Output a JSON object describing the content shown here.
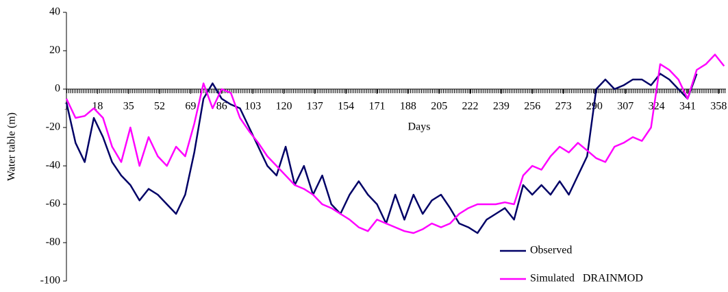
{
  "chart_data": {
    "type": "line",
    "x_label": "Days",
    "y_label": "Water table (m)",
    "x": [
      1,
      6,
      11,
      16,
      21,
      26,
      31,
      36,
      41,
      46,
      51,
      56,
      61,
      66,
      71,
      76,
      81,
      86,
      91,
      96,
      101,
      106,
      111,
      116,
      121,
      126,
      131,
      136,
      141,
      146,
      151,
      156,
      161,
      166,
      171,
      176,
      181,
      186,
      191,
      196,
      201,
      206,
      211,
      216,
      221,
      226,
      231,
      236,
      241,
      246,
      251,
      256,
      261,
      266,
      271,
      276,
      281,
      286,
      291,
      296,
      301,
      306,
      311,
      316,
      321,
      326,
      331,
      336,
      341,
      346,
      351,
      356,
      361
    ],
    "series": [
      {
        "name": "Observed",
        "color": "#000066",
        "values": [
          -7,
          -28,
          -38,
          -15,
          -25,
          -38,
          -45,
          -50,
          -58,
          -52,
          -55,
          -60,
          -65,
          -55,
          -33,
          -5,
          3,
          -5,
          -8,
          -10,
          -20,
          -30,
          -40,
          -45,
          -30,
          -50,
          -40,
          -55,
          -45,
          -60,
          -65,
          -55,
          -48,
          -55,
          -60,
          -70,
          -55,
          -68,
          -55,
          -65,
          -58,
          -55,
          -62,
          -70,
          -72,
          -75,
          -68,
          -65,
          -62,
          -68,
          -50,
          -55,
          -50,
          -55,
          -48,
          -55,
          -45,
          -35,
          0,
          5,
          0,
          2,
          5,
          5,
          2,
          8,
          5,
          0,
          -5,
          8,
          null,
          null,
          null
        ]
      },
      {
        "name": "Simulated   DRAINMOD",
        "color": "#ff00ff",
        "values": [
          -5,
          -15,
          -14,
          -10,
          -15,
          -30,
          -38,
          -20,
          -40,
          -25,
          -35,
          -40,
          -30,
          -35,
          -18,
          3,
          -10,
          0,
          -2,
          -15,
          -22,
          -28,
          -35,
          -40,
          -45,
          -50,
          -52,
          -55,
          -60,
          -62,
          -65,
          -68,
          -72,
          -74,
          -68,
          -70,
          -72,
          -74,
          -75,
          -73,
          -70,
          -72,
          -70,
          -65,
          -62,
          -60,
          -60,
          -60,
          -59,
          -60,
          -45,
          -40,
          -42,
          -35,
          -30,
          -33,
          -28,
          -32,
          -36,
          -38,
          -30,
          -28,
          -25,
          -27,
          -20,
          13,
          10,
          5,
          -5,
          10,
          13,
          18,
          12
        ]
      }
    ],
    "xlim": [
      1,
      362
    ],
    "xticks": [
      1,
      18,
      35,
      52,
      69,
      86,
      103,
      120,
      137,
      154,
      171,
      188,
      205,
      222,
      239,
      256,
      273,
      290,
      307,
      324,
      341,
      358
    ],
    "ylim": [
      -100,
      40
    ],
    "yticks": [
      40,
      20,
      0,
      -20,
      -40,
      -60,
      -80,
      -100
    ],
    "legend": "lower right"
  }
}
